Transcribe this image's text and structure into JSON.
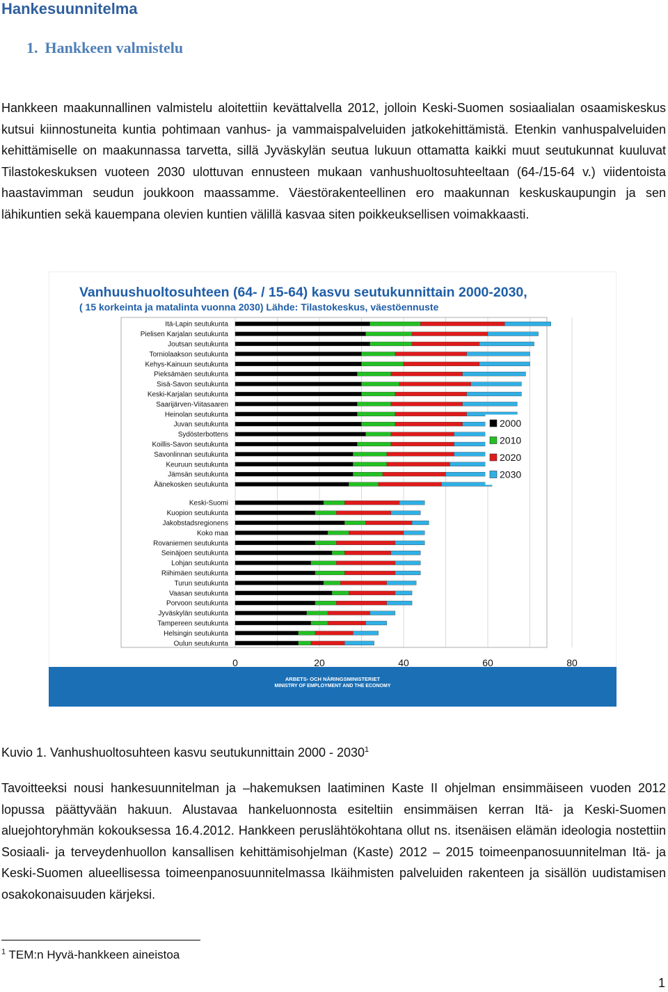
{
  "document": {
    "heading": "Hankesuunnitelma",
    "section_number": "1.",
    "section_title": "Hankkeen valmistelu",
    "paragraph1": "Hankkeen maakunnallinen valmistelu aloitettiin kevättalvella 2012, jolloin Keski-Suomen sosiaalialan osaamiskeskus kutsui kiinnostuneita kuntia pohtimaan vanhus- ja vammaispalveluiden jatkokehittämistä. Etenkin vanhuspalveluiden kehittämiselle on maakunnassa tarvetta, sillä Jyväskylän seutua lukuun ottamatta kaikki muut seutukunnat kuuluvat Tilastokeskuksen vuoteen 2030 ulottuvan ennusteen mukaan vanhushuoltosuhteeltaan (64-/15-64 v.) viidentoista haastavimman seudun joukkoon maassamme. Väestörakenteellinen ero maakunnan keskuskaupungin ja sen lähikuntien sekä kauempana olevien kuntien välillä kasvaa siten poikkeuksellisen voimakkaasti.",
    "caption": "Kuvio 1. Vanhushuoltosuhteen kasvu seutukunnittain 2000 - 2030",
    "caption_footnote_ref": "1",
    "paragraph2": "Tavoitteeksi nousi hankesuunnitelman ja –hakemuksen laatiminen Kaste II ohjelman ensimmäiseen vuoden 2012 lopussa päättyvään hakuun. Alustavaa hankeluonnosta esiteltiin ensimmäisen kerran Itä- ja Keski-Suomen aluejohtoryhmän kokouksessa 16.4.2012. Hankkeen peruslähtökohtana ollut ns. itsenäisen elämän ideologia nostettiin Sosiaali- ja terveydenhuollon kansallisen kehittämisohjelman (Kaste) 2012 – 2015 toimeenpanosuunnitelman Itä- ja Keski-Suomen alueellisessa toimeenpanosuunnitelmassa Ikäihmisten palveluiden rakenteen ja sisällön uudistamisen osakokonaisuuden kärjeksi.",
    "footnote_number": "1",
    "footnote_text": "TEM:n Hyvä-hankkeen aineistoa",
    "page_number": "1"
  },
  "chart_data": {
    "type": "bar",
    "orientation": "horizontal",
    "title": "Vanhuushuoltosuhteen (64- / 15-64) kasvu seutukunnittain 2000-2030,",
    "subtitle": "( 15 korkeinta ja matalinta vuonna 2030) Lähde: Tilastokeskus, väestöennuste",
    "footer_line1": "ARBETS- OCH NÄRINGSMINISTERIET",
    "footer_line2": "MINISTRY OF EMPLOYMENT AND THE ECONOMY",
    "xlim": [
      0,
      80
    ],
    "x_ticks": [
      "0",
      "20",
      "40",
      "60",
      "80"
    ],
    "legend_position": "right",
    "grid": true,
    "colors": {
      "2000": "#000000",
      "2010": "#22c022",
      "2020": "#e01a1a",
      "2030": "#2fb0e6",
      "title": "#1f5ea8",
      "footer_band": "#1b6fb5"
    },
    "series": [
      {
        "name": "2000"
      },
      {
        "name": "2010"
      },
      {
        "name": "2020"
      },
      {
        "name": "2030"
      }
    ],
    "groups": [
      {
        "categories": [
          {
            "name": "Itä-Lapin seutukunta",
            "values": [
              32,
              44,
              64,
              75
            ]
          },
          {
            "name": "Pielisen Karjalan seutukunta",
            "values": [
              31,
              42,
              60,
              72
            ]
          },
          {
            "name": "Joutsan seutukunta",
            "values": [
              32,
              42,
              58,
              71
            ]
          },
          {
            "name": "Torniolaakson seutukunta",
            "values": [
              30,
              38,
              55,
              70
            ]
          },
          {
            "name": "Kehys-Kainuun seutukunta",
            "values": [
              30,
              40,
              58,
              70
            ]
          },
          {
            "name": "Pieksämäen seutukunta",
            "values": [
              29,
              37,
              54,
              69
            ]
          },
          {
            "name": "Sisä-Savon seutukunta",
            "values": [
              30,
              39,
              56,
              68
            ]
          },
          {
            "name": "Keski-Karjalan seutukunta",
            "values": [
              30,
              38,
              55,
              68
            ]
          },
          {
            "name": "Saarijärven-Viitasaaren",
            "values": [
              29,
              37,
              54,
              67
            ]
          },
          {
            "name": "Heinolan seutukunta",
            "values": [
              29,
              38,
              55,
              67
            ]
          },
          {
            "name": "Juvan seutukunta",
            "values": [
              30,
              38,
              54,
              66
            ]
          },
          {
            "name": "Sydösterbottens",
            "values": [
              31,
              37,
              52,
              65
            ]
          },
          {
            "name": "Koillis-Savon seutukunta",
            "values": [
              29,
              37,
              52,
              64
            ]
          },
          {
            "name": "Savonlinnan seutukunta",
            "values": [
              28,
              36,
              52,
              64
            ]
          },
          {
            "name": "Keuruun seutukunta",
            "values": [
              28,
              36,
              51,
              63
            ]
          },
          {
            "name": "Jämsän seutukunta",
            "values": [
              28,
              35,
              50,
              62
            ]
          },
          {
            "name": "Äänekosken seutukunta",
            "values": [
              27,
              34,
              49,
              61
            ]
          }
        ]
      },
      {
        "categories": [
          {
            "name": "Keski-Suomi",
            "values": [
              21,
              26,
              39,
              45
            ]
          },
          {
            "name": "Kuopion seutukunta",
            "values": [
              19,
              24,
              37,
              44
            ]
          },
          {
            "name": "Jakobstadsregionens",
            "values": [
              26,
              31,
              42,
              46
            ]
          },
          {
            "name": "Koko maa",
            "values": [
              22,
              27,
              40,
              45
            ]
          },
          {
            "name": "Rovaniemen seutukunta",
            "values": [
              19,
              24,
              38,
              45
            ]
          },
          {
            "name": "Seinäjoen seutukunta",
            "values": [
              23,
              26,
              37,
              44
            ]
          },
          {
            "name": "Lohjan seutukunta",
            "values": [
              18,
              24,
              38,
              44
            ]
          },
          {
            "name": "Riihimäen seutukunta",
            "values": [
              19,
              26,
              38,
              44
            ]
          },
          {
            "name": "Turun seutukunta",
            "values": [
              21,
              25,
              36,
              43
            ]
          },
          {
            "name": "Vaasan seutukunta",
            "values": [
              23,
              27,
              38,
              42
            ]
          },
          {
            "name": "Porvoon seutukunta",
            "values": [
              19,
              24,
              36,
              42
            ]
          },
          {
            "name": "Jyväskylän seutukunta",
            "values": [
              17,
              22,
              32,
              38
            ]
          },
          {
            "name": "Tampereen seutukunta",
            "values": [
              18,
              22,
              31,
              36
            ]
          },
          {
            "name": "Helsingin seutukunta",
            "values": [
              15,
              19,
              28,
              34
            ]
          },
          {
            "name": "Oulun seutukunta",
            "values": [
              15,
              18,
              26,
              33
            ]
          }
        ]
      }
    ]
  }
}
